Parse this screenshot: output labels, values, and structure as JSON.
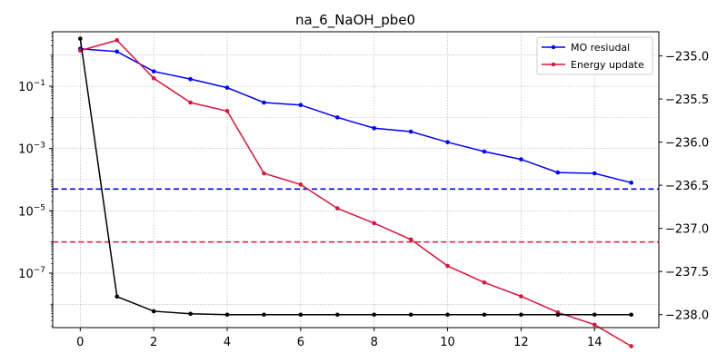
{
  "chart_data": {
    "type": "line",
    "title": "na_6_NaOH_pbe0",
    "x": [
      0,
      1,
      2,
      3,
      4,
      5,
      6,
      7,
      8,
      9,
      10,
      11,
      12,
      13,
      14,
      15
    ],
    "x_ticks": [
      0,
      2,
      4,
      6,
      8,
      10,
      12,
      14
    ],
    "x_tick_labels": [
      "0",
      "2",
      "4",
      "6",
      "8",
      "10",
      "12",
      "14"
    ],
    "xlim": [
      -0.75,
      15.75
    ],
    "left_axis": {
      "scale": "log",
      "ylim_log10": [
        -8.75,
        0.75
      ],
      "ticks_log10": [
        -1,
        -3,
        -5,
        -7
      ],
      "tick_labels": [
        "10^-1",
        "10^-3",
        "10^-5",
        "10^-7"
      ]
    },
    "right_axis": {
      "scale": "linear",
      "ylim": [
        -238.15,
        -234.72
      ],
      "ticks": [
        -235.0,
        -235.5,
        -236.0,
        -236.5,
        -237.0,
        -237.5,
        -238.0
      ],
      "tick_labels": [
        "−235.0",
        "−235.5",
        "−236.0",
        "−236.5",
        "−237.0",
        "−237.5",
        "−238.0"
      ]
    },
    "series": [
      {
        "name": "MO resiudal",
        "axis": "left",
        "color": "#0000ff",
        "values": [
          1.6,
          1.3,
          0.3,
          0.17,
          0.09,
          0.03,
          0.025,
          0.01,
          0.0045,
          0.0035,
          0.0016,
          0.0008,
          0.00045,
          0.00017,
          0.00016,
          8e-05
        ]
      },
      {
        "name": "Energy update",
        "axis": "left",
        "color": "#dc143c",
        "values": [
          1.4,
          3.0,
          0.18,
          0.03,
          0.016,
          0.00016,
          7e-05,
          1.2e-05,
          4e-06,
          1.2e-06,
          1.7e-07,
          5e-08,
          1.8e-08,
          5.5e-09,
          2.2e-09,
          4.5e-10
        ]
      },
      {
        "name": "",
        "axis": "right",
        "color": "#000000",
        "values": [
          -234.8,
          -237.79,
          -237.96,
          -237.99,
          -238.0,
          -238.0,
          -238.0,
          -238.0,
          -238.0,
          -238.0,
          -238.0,
          -238.0,
          -238.0,
          -238.0,
          -238.0,
          -238.0
        ]
      }
    ],
    "hlines": [
      {
        "axis": "left",
        "value": 5e-05,
        "color": "#0000ff",
        "style": "dashed"
      },
      {
        "axis": "left",
        "value": 1e-06,
        "color": "#dc143c",
        "style": "dashed"
      }
    ],
    "grid": true,
    "legend": {
      "position": "top-right",
      "entries": [
        "MO resiudal",
        "Energy update"
      ]
    }
  }
}
